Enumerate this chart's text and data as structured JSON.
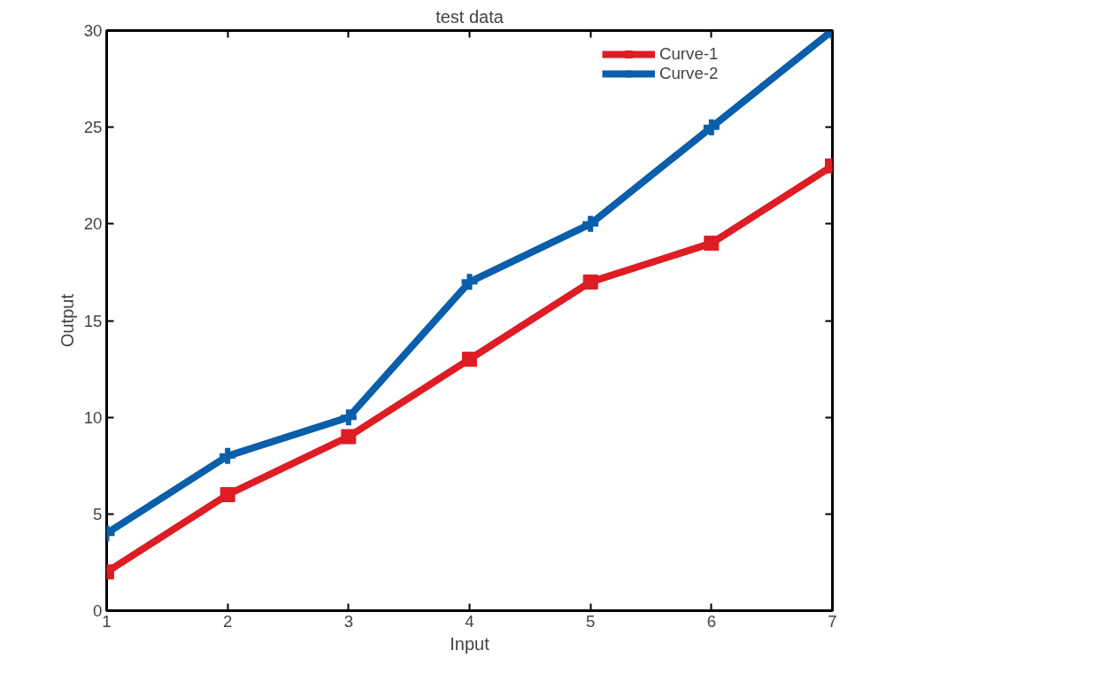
{
  "chart_data": {
    "type": "line",
    "title": "test data",
    "xlabel": "Input",
    "ylabel": "Output",
    "x": [
      1,
      2,
      3,
      4,
      5,
      6,
      7
    ],
    "series": [
      {
        "name": "Curve-1",
        "color": "#dd1c24",
        "marker": "square",
        "values": [
          2,
          6,
          9,
          13,
          17,
          19,
          23
        ]
      },
      {
        "name": "Curve-2",
        "color": "#0a5eaa",
        "marker": "cross",
        "values": [
          4,
          8,
          10,
          17,
          20,
          25,
          30
        ]
      }
    ],
    "xlim": [
      1,
      7
    ],
    "ylim": [
      0,
      30
    ],
    "xticks": [
      1,
      2,
      3,
      4,
      5,
      6,
      7
    ],
    "yticks": [
      0,
      5,
      10,
      15,
      20,
      25,
      30
    ],
    "grid": false,
    "legend": "top right",
    "line_style": "solid"
  }
}
